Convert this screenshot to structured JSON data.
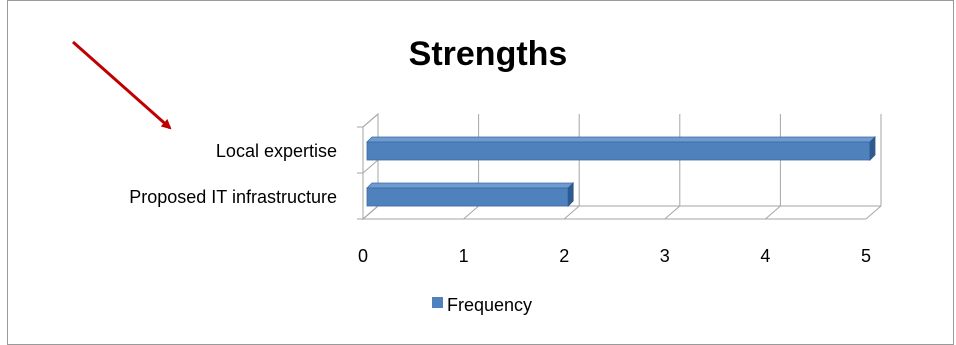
{
  "chart_data": {
    "type": "bar",
    "orientation": "horizontal",
    "style": "3d",
    "title": "Strengths",
    "categories": [
      "Local expertise",
      "Proposed IT infrastructure"
    ],
    "series": [
      {
        "name": "Frequency",
        "values": [
          5,
          2
        ],
        "color": "#4F81BD"
      }
    ],
    "xlim": [
      0,
      5
    ],
    "xticks": [
      "0",
      "1",
      "2",
      "3",
      "4",
      "5"
    ],
    "grid": true,
    "legend": "bottom",
    "annotation": {
      "type": "arrow",
      "color": "#C00000",
      "points_to": "Local expertise"
    }
  }
}
